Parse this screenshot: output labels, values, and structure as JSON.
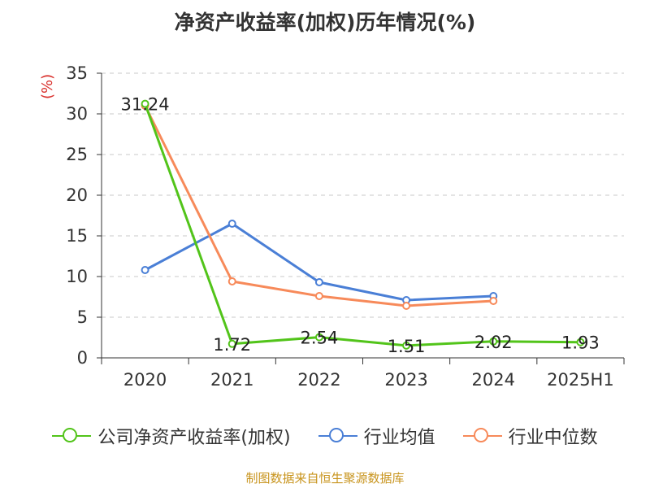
{
  "chart_data": {
    "type": "line",
    "title": "净资产收益率(加权)历年情况(%)",
    "ylabel": "(%)",
    "categories": [
      "2020",
      "2021",
      "2022",
      "2023",
      "2024",
      "2025H1"
    ],
    "ylim": [
      0,
      35
    ],
    "yticks": [
      0,
      5,
      10,
      15,
      20,
      25,
      30,
      35
    ],
    "grid": true,
    "legend_position": "bottom",
    "series": [
      {
        "name": "公司净资产收益率(加权)",
        "color": "#52c41a",
        "values": [
          31.24,
          1.72,
          2.54,
          1.51,
          2.02,
          1.93
        ],
        "labels": [
          "31.24",
          "1.72",
          "2.54",
          "1.51",
          "2.02",
          "1.93"
        ]
      },
      {
        "name": "行业均值",
        "color": "#4a7fd6",
        "values": [
          10.8,
          16.5,
          9.3,
          7.1,
          7.6,
          null
        ]
      },
      {
        "name": "行业中位数",
        "color": "#f78a5a",
        "values": [
          31.0,
          9.4,
          7.6,
          6.4,
          7.0,
          null
        ]
      }
    ]
  },
  "source": "制图数据来自恒生聚源数据库"
}
